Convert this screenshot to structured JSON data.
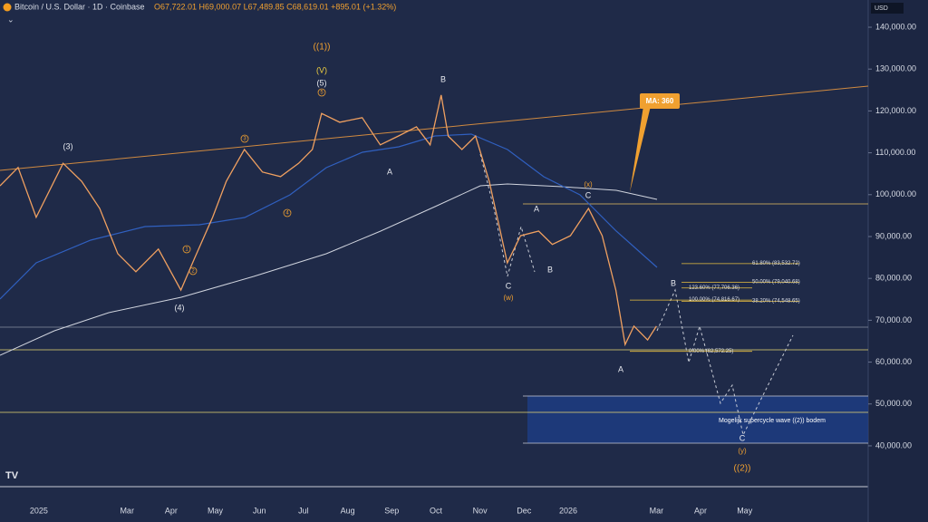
{
  "header": {
    "symbol": "Bitcoin / U.S. Dollar · 1D · Coinbase",
    "ohlc": "O67,722.01 H69,000.07 L67,489.85 C68,619.01 +895.01 (+1.32%)",
    "currency": "USD"
  },
  "annotations": {
    "waves": [
      "((1))",
      "(V)",
      "(5)",
      "(3)",
      "(4)",
      "A",
      "B",
      "C",
      "(w)",
      "(x)",
      "C",
      "A",
      "B",
      "A",
      "B",
      "C",
      "(y)",
      "((2))"
    ],
    "subwaves": [
      "5",
      "3",
      "4",
      "1",
      "2"
    ],
    "ma_label": "MA: 360",
    "zone_label": "Mogelijk supercycle wave ((2)) bodem"
  },
  "chart_data": {
    "type": "line",
    "categories": [
      "2025",
      null,
      "Mar",
      "Apr",
      "May",
      "Jun",
      "Jul",
      "Aug",
      "Sep",
      "Oct",
      "Nov",
      "Dec",
      "2026",
      null,
      "Mar",
      "Apr",
      "May"
    ],
    "xlim": [
      -0.88,
      18.8
    ],
    "ylim": [
      29600,
      146500
    ],
    "yticks": [
      {
        "value": 40000,
        "label": "40,000.00"
      },
      {
        "value": 50000,
        "label": "50,000.00"
      },
      {
        "value": 60000,
        "label": "60,000.00"
      },
      {
        "value": 70000,
        "label": "70,000.00"
      },
      {
        "value": 80000,
        "label": "80,000.00"
      },
      {
        "value": 90000,
        "label": "90,000.00"
      },
      {
        "value": 100000,
        "label": "100,000.00"
      },
      {
        "value": 110000,
        "label": "110,000.00"
      },
      {
        "value": 120000,
        "label": "120,000.00"
      },
      {
        "value": 130000,
        "label": "130,000.00"
      },
      {
        "value": 140000,
        "label": "140,000.00"
      }
    ],
    "series": [
      {
        "name": "BTCUSD",
        "color": "#f0a060",
        "x": [
          -0.88,
          -0.47,
          -0.06,
          0.55,
          0.97,
          1.38,
          1.79,
          2.2,
          2.71,
          3.22,
          3.53,
          3.94,
          4.25,
          4.66,
          5.07,
          5.48,
          5.89,
          6.2,
          6.41,
          6.82,
          7.33,
          7.74,
          8.15,
          8.56,
          8.87,
          9.12,
          9.28,
          9.59,
          9.9,
          10.21,
          10.62,
          10.92,
          11.33,
          11.64,
          12.05,
          12.46,
          12.77,
          13.08,
          13.29,
          13.49,
          13.8,
          14.0
        ],
        "values": [
          102100,
          106500,
          94600,
          107500,
          103200,
          96700,
          85900,
          81600,
          87000,
          77200,
          84800,
          94600,
          103200,
          110800,
          105400,
          104300,
          107500,
          110800,
          119400,
          117300,
          118400,
          111900,
          114000,
          116200,
          111900,
          123800,
          114000,
          110800,
          114000,
          103200,
          83700,
          90200,
          91300,
          88100,
          90200,
          96700,
          90200,
          77200,
          64200,
          68600,
          65300,
          68600
        ]
      }
    ],
    "fib_levels": [
      {
        "value": 83532.72,
        "label": "61.80% (83,532.72)"
      },
      {
        "value": 79040.68,
        "label": "50.00% (79,040.68)"
      },
      {
        "value": 74548.65,
        "label": "38.20% (74,548.65)"
      },
      {
        "value": 77706.36,
        "label": "123.60% (77,706.36)"
      },
      {
        "value": 74816.67,
        "label": "100.00% (74,816.67)"
      },
      {
        "value": 62572.25,
        "label": "0.00% (62,572.25)"
      }
    ]
  }
}
